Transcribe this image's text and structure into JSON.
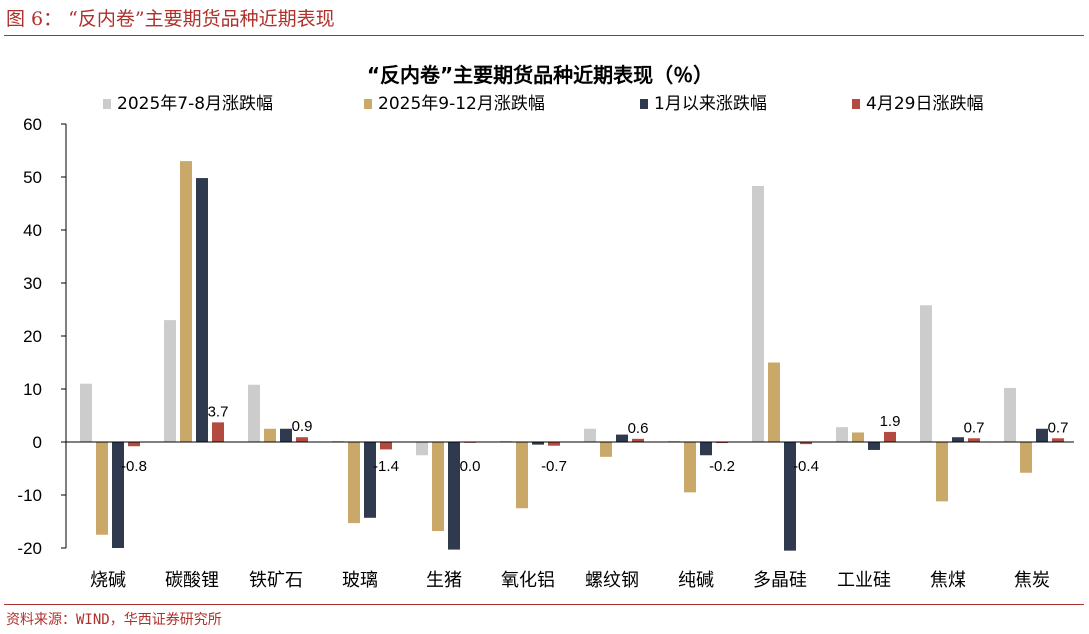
{
  "figure": {
    "title": "图 6：  “反内卷”主要期货品种近期表现",
    "source": "资料来源：WIND，华西证券研究所"
  },
  "colors": {
    "accent": "#b0312b",
    "series": [
      "#cccccc",
      "#c9a86a",
      "#2f3a4f",
      "#b34a3f"
    ]
  },
  "chart_data": {
    "type": "bar",
    "title": "“反内卷”主要期货品种近期表现（％）",
    "xlabel": "",
    "ylabel": "",
    "ylim": [
      -20,
      60
    ],
    "yticks": [
      60,
      50,
      40,
      30,
      20,
      10,
      0,
      -10,
      -20
    ],
    "legend_position": "top",
    "grid": false,
    "categories": [
      "烧碱",
      "碳酸锂",
      "铁矿石",
      "玻璃",
      "生猪",
      "氧化铝",
      "螺纹钢",
      "纯碱",
      "多晶硅",
      "工业硅",
      "焦煤",
      "焦炭"
    ],
    "series": [
      {
        "name": "2025年7-8月涨跌幅",
        "values": [
          11.0,
          23.0,
          10.8,
          0.2,
          -2.5,
          0.2,
          2.5,
          0.2,
          48.3,
          2.8,
          25.8,
          10.2
        ]
      },
      {
        "name": "2025年9-12月涨跌幅",
        "values": [
          -17.5,
          53.0,
          2.5,
          -15.3,
          -16.8,
          -12.5,
          -2.8,
          -9.5,
          15.0,
          1.8,
          -11.2,
          -5.8
        ]
      },
      {
        "name": "1月以来涨跌幅",
        "values": [
          -20.0,
          49.8,
          2.5,
          -14.3,
          -20.3,
          -0.5,
          1.4,
          -2.5,
          -20.5,
          -1.5,
          0.9,
          2.5
        ]
      },
      {
        "name": "4月29日涨跌幅",
        "values": [
          -0.8,
          3.7,
          0.9,
          -1.4,
          0.0,
          -0.7,
          0.6,
          -0.2,
          -0.4,
          1.9,
          0.7,
          0.7
        ]
      }
    ],
    "data_labels": [
      "-0.8",
      "3.7",
      "0.9",
      "-1.4",
      "0.0",
      "-0.7",
      "0.6",
      "-0.2",
      "-0.4",
      "1.9",
      "0.7",
      "0.7"
    ]
  }
}
